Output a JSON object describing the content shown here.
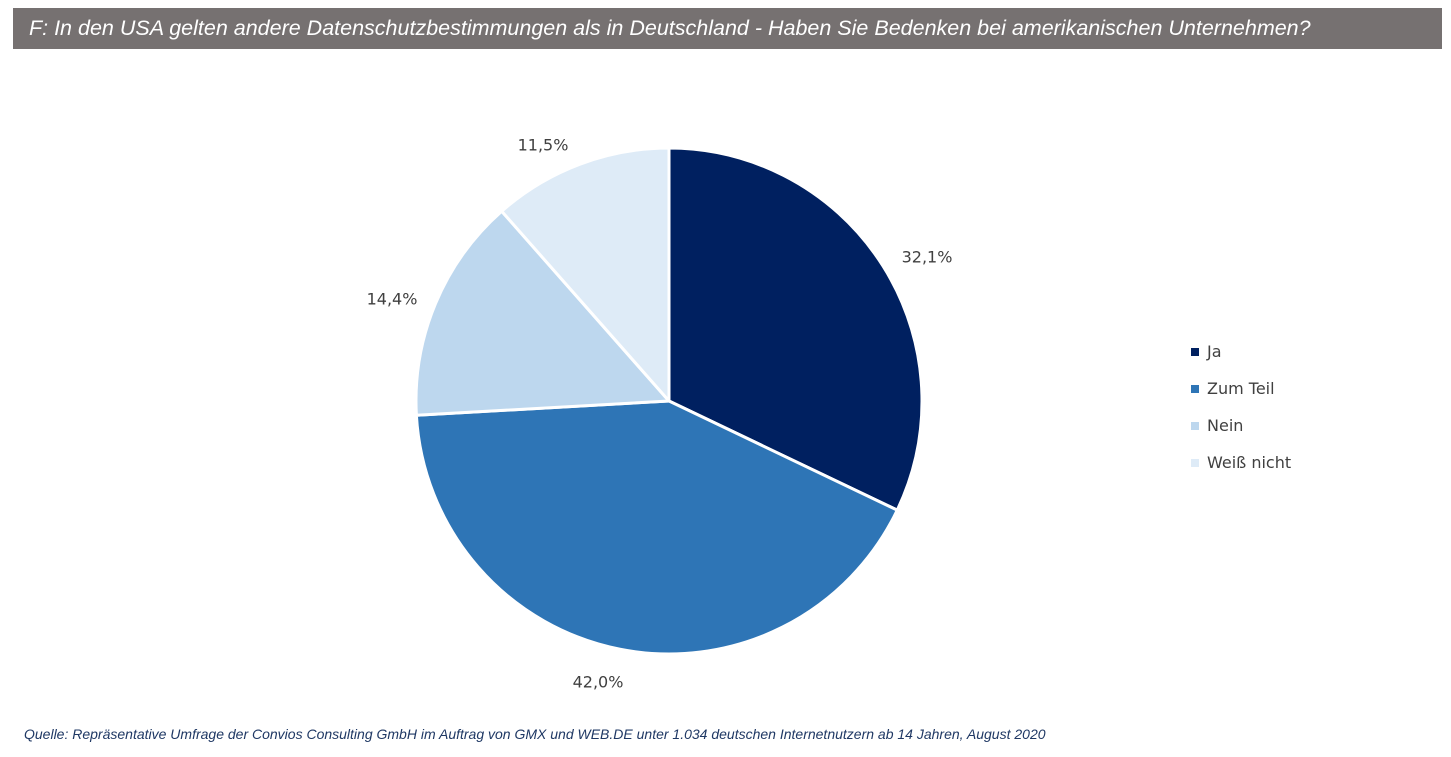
{
  "title": "F: In den USA gelten andere Datenschutzbestimmungen als in Deutschland - Haben Sie Bedenken bei amerikanischen Unternehmen?",
  "source": "Quelle: Repräsentative Umfrage der Convios Consulting GmbH im Auftrag von GMX und WEB.DE unter 1.034 deutschen Internetnutzern ab 14 Jahren, August 2020",
  "chart_data": {
    "type": "pie",
    "title": "F: In den USA gelten andere Datenschutzbestimmungen als in Deutschland - Haben Sie Bedenken bei amerikanischen Unternehmen?",
    "categories": [
      "Ja",
      "Zum Teil",
      "Nein",
      "Weiß nicht"
    ],
    "values": [
      32.1,
      42.0,
      14.4,
      11.5
    ],
    "labels": [
      "32,1%",
      "42,0%",
      "14,4%",
      "11,5%"
    ],
    "colors": [
      "#002060",
      "#2E75B6",
      "#BDD7EE",
      "#DEEBF7"
    ],
    "legend": "right",
    "start": "top, clockwise"
  }
}
